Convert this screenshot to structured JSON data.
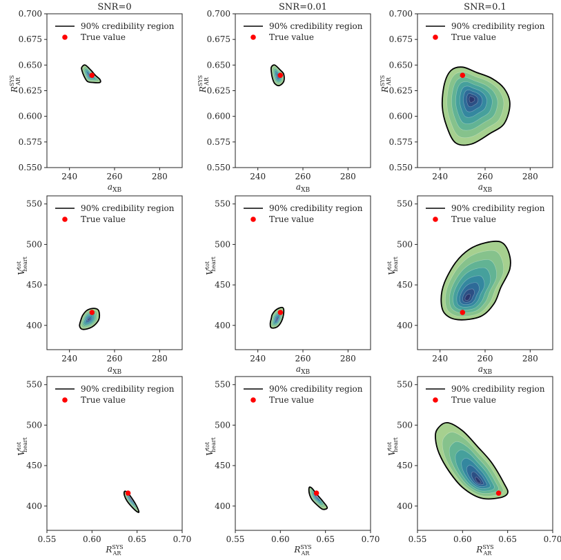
{
  "colors": {
    "true_value": "#ff0000",
    "contour_outer": "#9ccc8c",
    "contour_inner": "#2e2f6e",
    "region_line": "#000000"
  },
  "column_titles": [
    "SNR=0",
    "SNR=0.01",
    "SNR=0.1"
  ],
  "legend": {
    "region_label": "90% credibility region",
    "true_value_label": "True value"
  },
  "chart_data": [
    {
      "type": "contour",
      "row": 0,
      "col": 0,
      "title": "SNR=0",
      "xlabel": "a_XB",
      "ylabel": "R_AR^SYS",
      "xlim": [
        230,
        290
      ],
      "ylim": [
        0.55,
        0.7
      ],
      "xticks": [
        "240",
        "260",
        "280"
      ],
      "yticks": [
        "0.550",
        "0.575",
        "0.600",
        "0.625",
        "0.650",
        "0.675",
        "0.700"
      ],
      "true_value": [
        250,
        0.64
      ],
      "density_peak": [
        249,
        0.64
      ],
      "region": [
        [
          245.5,
          0.648
        ],
        [
          247,
          0.65
        ],
        [
          249.5,
          0.645
        ],
        [
          251.5,
          0.64
        ],
        [
          253.5,
          0.636
        ],
        [
          253.5,
          0.633
        ],
        [
          250.5,
          0.633
        ],
        [
          248,
          0.634
        ],
        [
          246.5,
          0.639
        ],
        [
          245.5,
          0.645
        ]
      ]
    },
    {
      "type": "contour",
      "row": 0,
      "col": 1,
      "title": "SNR=0.01",
      "xlabel": "a_XB",
      "ylabel": "R_AR^SYS",
      "xlim": [
        230,
        290
      ],
      "ylim": [
        0.55,
        0.7
      ],
      "xticks": [
        "240",
        "260",
        "280"
      ],
      "yticks": [
        "0.550",
        "0.575",
        "0.600",
        "0.625",
        "0.650",
        "0.675",
        "0.700"
      ],
      "true_value": [
        250,
        0.64
      ],
      "density_peak": [
        249,
        0.639
      ],
      "region": [
        [
          246,
          0.648
        ],
        [
          247.5,
          0.65
        ],
        [
          250,
          0.645
        ],
        [
          251.5,
          0.641
        ],
        [
          251.5,
          0.634
        ],
        [
          249.5,
          0.63
        ],
        [
          247.5,
          0.632
        ],
        [
          246.5,
          0.637
        ],
        [
          246,
          0.643
        ]
      ]
    },
    {
      "type": "contour",
      "row": 0,
      "col": 2,
      "title": "SNR=0.1",
      "xlabel": "a_XB",
      "ylabel": "R_AR^SYS",
      "xlim": [
        230,
        290
      ],
      "ylim": [
        0.55,
        0.7
      ],
      "xticks": [
        "240",
        "260",
        "280"
      ],
      "yticks": [
        "0.550",
        "0.575",
        "0.600",
        "0.625",
        "0.650",
        "0.675",
        "0.700"
      ],
      "true_value": [
        250,
        0.64
      ],
      "density_peak": [
        254,
        0.617
      ],
      "region": [
        [
          245,
          0.645
        ],
        [
          250,
          0.648
        ],
        [
          256,
          0.643
        ],
        [
          263,
          0.637
        ],
        [
          268.5,
          0.627
        ],
        [
          271,
          0.612
        ],
        [
          268.5,
          0.593
        ],
        [
          262,
          0.583
        ],
        [
          254,
          0.573
        ],
        [
          247,
          0.574
        ],
        [
          243,
          0.59
        ],
        [
          241,
          0.61
        ],
        [
          242,
          0.632
        ]
      ]
    },
    {
      "type": "contour",
      "row": 1,
      "col": 0,
      "title": "",
      "xlabel": "a_XB",
      "ylabel": "V_heart^tot",
      "xlim": [
        230,
        290
      ],
      "ylim": [
        370,
        560
      ],
      "xticks": [
        "240",
        "260",
        "280"
      ],
      "yticks": [
        "400",
        "450",
        "500",
        "550"
      ],
      "true_value": [
        250,
        416
      ],
      "density_peak": [
        248.5,
        407
      ],
      "region": [
        [
          246,
          413
        ],
        [
          248,
          419
        ],
        [
          251,
          421
        ],
        [
          253,
          418
        ],
        [
          253,
          407
        ],
        [
          250,
          398
        ],
        [
          246,
          395
        ],
        [
          244.5,
          399
        ],
        [
          245,
          406
        ]
      ]
    },
    {
      "type": "contour",
      "row": 1,
      "col": 1,
      "title": "",
      "xlabel": "a_XB",
      "ylabel": "V_heart^tot",
      "xlim": [
        230,
        290
      ],
      "ylim": [
        370,
        560
      ],
      "xticks": [
        "240",
        "260",
        "280"
      ],
      "yticks": [
        "400",
        "450",
        "500",
        "550"
      ],
      "true_value": [
        250,
        416
      ],
      "density_peak": [
        248.5,
        407
      ],
      "region": [
        [
          246.5,
          414
        ],
        [
          248.5,
          420
        ],
        [
          251,
          422
        ],
        [
          251.5,
          416
        ],
        [
          250.5,
          405
        ],
        [
          248.5,
          398
        ],
        [
          246,
          397
        ],
        [
          245.5,
          402
        ],
        [
          246,
          409
        ]
      ]
    },
    {
      "type": "contour",
      "row": 1,
      "col": 2,
      "title": "",
      "xlabel": "a_XB",
      "ylabel": "V_heart^tot",
      "xlim": [
        230,
        290
      ],
      "ylim": [
        370,
        560
      ],
      "xticks": [
        "240",
        "260",
        "280"
      ],
      "yticks": [
        "400",
        "450",
        "500",
        "550"
      ],
      "true_value": [
        250,
        416
      ],
      "density_peak": [
        252,
        433
      ],
      "region": [
        [
          242,
          453
        ],
        [
          247,
          478
        ],
        [
          253,
          494
        ],
        [
          260,
          502
        ],
        [
          267,
          503
        ],
        [
          270.5,
          490
        ],
        [
          271,
          470
        ],
        [
          267,
          447
        ],
        [
          264,
          427
        ],
        [
          258,
          411
        ],
        [
          248,
          407
        ],
        [
          242,
          415
        ],
        [
          240.5,
          432
        ]
      ]
    },
    {
      "type": "contour",
      "row": 2,
      "col": 0,
      "title": "",
      "xlabel": "R_AR^SYS",
      "ylabel": "V_heart^tot",
      "xlim": [
        0.55,
        0.7
      ],
      "ylim": [
        370,
        560
      ],
      "xticks": [
        "0.55",
        "0.60",
        "0.65",
        "0.70"
      ],
      "yticks": [
        "400",
        "450",
        "500",
        "550"
      ],
      "true_value": [
        0.64,
        416
      ],
      "density_peak": [
        0.643,
        409
      ],
      "region": [
        [
          0.636,
          418
        ],
        [
          0.639,
          417
        ],
        [
          0.644,
          410
        ],
        [
          0.649,
          401
        ],
        [
          0.652,
          393
        ],
        [
          0.65,
          393
        ],
        [
          0.645,
          398
        ],
        [
          0.639,
          406
        ],
        [
          0.636,
          413
        ]
      ]
    },
    {
      "type": "contour",
      "row": 2,
      "col": 1,
      "title": "",
      "xlabel": "R_AR^SYS",
      "ylabel": "V_heart^tot",
      "xlim": [
        0.55,
        0.7
      ],
      "ylim": [
        370,
        560
      ],
      "xticks": [
        "0.55",
        "0.60",
        "0.65",
        "0.70"
      ],
      "yticks": [
        "400",
        "450",
        "500",
        "550"
      ],
      "true_value": [
        0.64,
        416
      ],
      "density_peak": [
        0.64,
        412
      ],
      "region": [
        [
          0.632,
          423
        ],
        [
          0.635,
          422
        ],
        [
          0.64,
          415
        ],
        [
          0.647,
          406
        ],
        [
          0.652,
          398
        ],
        [
          0.647,
          396
        ],
        [
          0.641,
          401
        ],
        [
          0.635,
          408
        ],
        [
          0.632,
          416
        ]
      ]
    },
    {
      "type": "contour",
      "row": 2,
      "col": 2,
      "title": "",
      "xlabel": "R_AR^SYS",
      "ylabel": "V_heart^tot",
      "xlim": [
        0.55,
        0.7
      ],
      "ylim": [
        370,
        560
      ],
      "xticks": [
        "0.55",
        "0.60",
        "0.65",
        "0.70"
      ],
      "yticks": [
        "400",
        "450",
        "500",
        "550"
      ],
      "true_value": [
        0.64,
        416
      ],
      "density_peak": [
        0.618,
        430
      ],
      "region": [
        [
          0.572,
          495
        ],
        [
          0.583,
          503
        ],
        [
          0.6,
          493
        ],
        [
          0.617,
          473
        ],
        [
          0.632,
          454
        ],
        [
          0.646,
          428
        ],
        [
          0.65,
          416
        ],
        [
          0.64,
          410
        ],
        [
          0.62,
          410
        ],
        [
          0.6,
          423
        ],
        [
          0.585,
          443
        ],
        [
          0.574,
          465
        ],
        [
          0.57,
          483
        ]
      ]
    }
  ]
}
